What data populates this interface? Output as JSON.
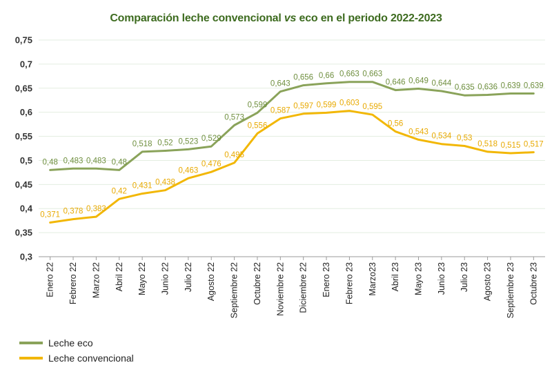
{
  "chart_data": {
    "type": "line",
    "title": {
      "part1": "Comparación leche convencional ",
      "part2": "vs",
      "part3": " eco en el periodo 2022-2023"
    },
    "categories": [
      "Enero 22",
      "Febrero 22",
      "Marzo 22",
      "Abril 22",
      "Mayo 22",
      "Junio 22",
      "Julio 22",
      "Agosto 22",
      "Septiembre 22",
      "Octubre 22",
      "Noviembre 22",
      "Diciembre 22",
      "Enero 23",
      "Febrero 23",
      "Marzo23",
      "Abril 23",
      "Mayo 23",
      "Junio 23",
      "Julio 23",
      "Agosto 23",
      "Septiembre 23",
      "Octubre 23"
    ],
    "y_ticks": [
      "0,3",
      "0,35",
      "0,4",
      "0,45",
      "0,5",
      "0,55",
      "0,6",
      "0,65",
      "0,7",
      "0,75"
    ],
    "ylim": [
      0.3,
      0.75
    ],
    "grid": true,
    "legend_position": "bottom-left",
    "series": [
      {
        "name": "Leche eco",
        "color": "#8aa35a",
        "label_color": "#6f8f3f",
        "values": [
          0.48,
          0.483,
          0.483,
          0.48,
          0.518,
          0.52,
          0.523,
          0.529,
          0.573,
          0.599,
          0.643,
          0.656,
          0.66,
          0.663,
          0.663,
          0.646,
          0.649,
          0.644,
          0.635,
          0.636,
          0.639,
          0.639
        ],
        "labels": [
          "0,48",
          "0,483",
          "0,483",
          "0,48",
          "0,518",
          "0,52",
          "0,523",
          "0,529",
          "0,573",
          "0,599",
          "0,643",
          "0,656",
          "0,66",
          "0,663",
          "0,663",
          "0,646",
          "0,649",
          "0,644",
          "0,635",
          "0,636",
          "0,639",
          "0,639"
        ]
      },
      {
        "name": "Leche convencional",
        "color": "#f2b705",
        "label_color": "#e8a900",
        "values": [
          0.371,
          0.378,
          0.383,
          0.42,
          0.431,
          0.438,
          0.463,
          0.476,
          0.495,
          0.556,
          0.587,
          0.597,
          0.599,
          0.603,
          0.595,
          0.56,
          0.543,
          0.534,
          0.53,
          0.518,
          0.515,
          0.517
        ],
        "labels": [
          "0,371",
          "0,378",
          "0,383",
          "0,42",
          "0,431",
          "0,438",
          "0,463",
          "0,476",
          "0,495",
          "0,556",
          "0,587",
          "0,597",
          "0,599",
          "0,603",
          "0,595",
          "0,56",
          "0,543",
          "0,534",
          "0,53",
          "0,518",
          "0,515",
          "0,517"
        ]
      }
    ]
  }
}
